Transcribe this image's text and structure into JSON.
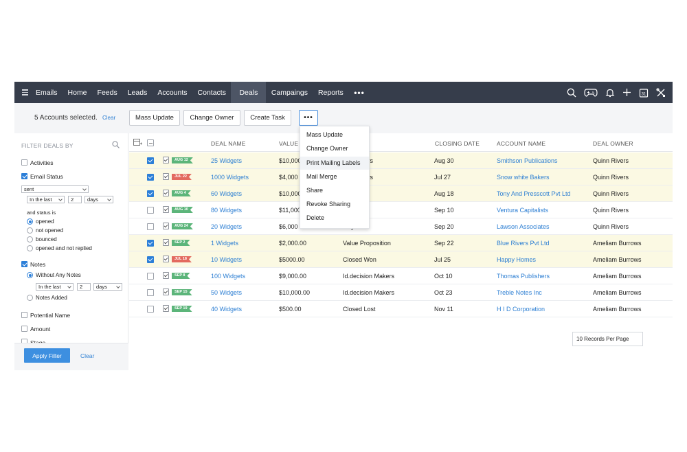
{
  "nav": {
    "tabs": [
      "Emails",
      "Home",
      "Feeds",
      "Leads",
      "Accounts",
      "Contacts",
      "Deals",
      "Campaings",
      "Reports"
    ],
    "active_tab": "Deals",
    "more": "•••",
    "icons": [
      "search-icon",
      "gamepad-icon",
      "bell-icon",
      "plus-icon",
      "calendar-icon",
      "tools-icon"
    ],
    "calendar_day": "31"
  },
  "actionbar": {
    "selected_text": "5 Accounts selected.",
    "clear": "Clear",
    "buttons": {
      "mass_update": "Mass Update",
      "change_owner": "Change Owner",
      "create_task": "Create Task",
      "more": "•••"
    }
  },
  "dropdown": {
    "items": [
      "Mass Update",
      "Change Owner",
      "Print Mailing Labels",
      "Mail Merge",
      "Share",
      "Revoke Sharing",
      "Delete"
    ],
    "highlighted": "Print Mailing Labels"
  },
  "sidebar": {
    "title": "FILTER DEALS BY",
    "activities": "Activities",
    "email_status": "Email Status",
    "email_select": "sent",
    "in_the_last": "In the last",
    "in_the_last_value": "2",
    "days": "days",
    "and_status_is": "and status is",
    "status_options": [
      "opened",
      "not opened",
      "bounced",
      "opened and not replied"
    ],
    "notes": "Notes",
    "without_notes": "Without Any Notes",
    "notes_in_the_last": "In the last",
    "notes_value": "2",
    "notes_days": "days",
    "notes_added": "Notes Added",
    "potential_name": "Potential Name",
    "amount": "Amount",
    "stage": "Stage",
    "apply": "Apply Filter",
    "clear": "Clear"
  },
  "table": {
    "headers": [
      "DEAL NAME",
      "VALUE",
      "CLOSING DATE",
      "ACCOUNT NAME",
      "DEAL OWNER"
    ],
    "rows": [
      {
        "checked": true,
        "badge": "AUG 12",
        "badge_color": "#5cb57a",
        "deal": "25 Widgets",
        "value": "$10,000",
        "stage": "ion Makers",
        "closing": "Aug 30",
        "account": "Smithson Publications",
        "owner": "Quinn Rivers"
      },
      {
        "checked": true,
        "badge": "JUL 22",
        "badge_color": "#e36a5f",
        "deal": "1000 Widgets",
        "value": "$4,000",
        "stage": "ion Makers",
        "closing": "Jul 27",
        "account": "Snow white Bakers",
        "owner": "Quinn Rivers"
      },
      {
        "checked": true,
        "badge": "AUG 4",
        "badge_color": "#5cb57a",
        "deal": "60 Widgets",
        "value": "$10,000",
        "stage": "tion",
        "closing": "Aug 18",
        "account": "Tony And Presscott Pvt Ltd",
        "owner": "Quinn Rivers"
      },
      {
        "checked": false,
        "badge": "AUG 10",
        "badge_color": "#5cb57a",
        "deal": "80 Widgets",
        "value": "$11,000",
        "stage": "ion",
        "closing": "Sep 10",
        "account": "Ventura Capitalists",
        "owner": "Quinn Rivers"
      },
      {
        "checked": false,
        "badge": "AUG 24",
        "badge_color": "#5cb57a",
        "deal": "20 Widgets",
        "value": "$6,000",
        "stage": "nalysis",
        "closing": "Sep 20",
        "account": "Lawson Associates",
        "owner": "Quinn Rivers"
      },
      {
        "checked": true,
        "badge": "SEP 2",
        "badge_color": "#5cb57a",
        "deal": "1 Widgets",
        "value": "$2,000.00",
        "stage": "Value Proposition",
        "closing": "Sep 22",
        "account": "Blue Rivers Pvt Ltd",
        "owner": "Ameliam Burrows"
      },
      {
        "checked": true,
        "badge": "JUL 18",
        "badge_color": "#e36a5f",
        "deal": "10 Widgets",
        "value": "$5000.00",
        "stage": "Closed Won",
        "closing": "Jul 25",
        "account": "Happy Homes",
        "owner": "Ameliam Burrows"
      },
      {
        "checked": false,
        "badge": "SEP 8",
        "badge_color": "#5cb57a",
        "deal": "100 Widgets",
        "value": "$9,000.00",
        "stage": "Id.decision Makers",
        "closing": "Oct 10",
        "account": "Thomas Publishers",
        "owner": "Ameliam Burrows"
      },
      {
        "checked": false,
        "badge": "SEP 15",
        "badge_color": "#5cb57a",
        "deal": "50 Widgets",
        "value": "$10,000.00",
        "stage": "Id.decision Makers",
        "closing": "Oct 23",
        "account": "Treble Notes Inc",
        "owner": "Ameliam Burrows"
      },
      {
        "checked": false,
        "badge": "SEP 19",
        "badge_color": "#5cb57a",
        "deal": "40 Widgets",
        "value": "$500.00",
        "stage": "Closed Lost",
        "closing": "Nov 11",
        "account": "H I D Corporation",
        "owner": "Ameliam Burrows"
      }
    ],
    "records_per_page": "10 Records Per Page"
  }
}
